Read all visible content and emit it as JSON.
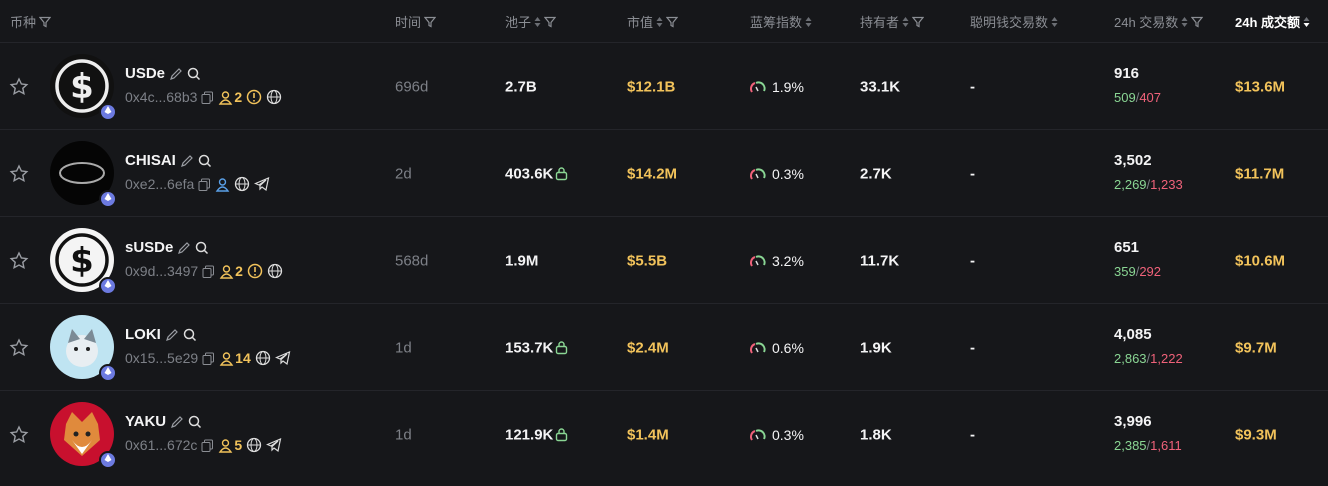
{
  "table": {
    "headers": [
      "币种",
      "时间",
      "池子",
      "市值",
      "蓝筹指数",
      "持有者",
      "聪明钱交易数",
      "24h 交易数",
      "24h 成交额"
    ],
    "buy_sell_separator": "/",
    "rows": [
      {
        "name": "USDe",
        "address": "0x4c...68b3",
        "holder_count": "2",
        "age": "696d",
        "pool": "2.7B",
        "market_cap": "$12.1B",
        "bluechip": "1.9%",
        "holders": "33.1K",
        "smart_money": "-",
        "txns": "916",
        "buys": "509",
        "sells": "407",
        "volume": "$13.6M"
      },
      {
        "name": "CHISAI",
        "address": "0xe2...6efa",
        "age": "2d",
        "pool": "403.6K",
        "market_cap": "$14.2M",
        "bluechip": "0.3%",
        "holders": "2.7K",
        "smart_money": "-",
        "txns": "3,502",
        "buys": "2,269",
        "sells": "1,233",
        "volume": "$11.7M"
      },
      {
        "name": "sUSDe",
        "address": "0x9d...3497",
        "holder_count": "2",
        "age": "568d",
        "pool": "1.9M",
        "market_cap": "$5.5B",
        "bluechip": "3.2%",
        "holders": "11.7K",
        "smart_money": "-",
        "txns": "651",
        "buys": "359",
        "sells": "292",
        "volume": "$10.6M"
      },
      {
        "name": "LOKI",
        "address": "0x15...5e29",
        "holder_count": "14",
        "age": "1d",
        "pool": "153.7K",
        "market_cap": "$2.4M",
        "bluechip": "0.6%",
        "holders": "1.9K",
        "smart_money": "-",
        "txns": "4,085",
        "buys": "2,863",
        "sells": "1,222",
        "volume": "$9.7M"
      },
      {
        "name": "YAKU",
        "address": "0x61...672c",
        "holder_count": "5",
        "age": "1d",
        "pool": "121.9K",
        "market_cap": "$1.4M",
        "bluechip": "0.3%",
        "holders": "1.8K",
        "smart_money": "-",
        "txns": "3,996",
        "buys": "2,385",
        "sells": "1,611",
        "volume": "$9.3M"
      }
    ]
  }
}
